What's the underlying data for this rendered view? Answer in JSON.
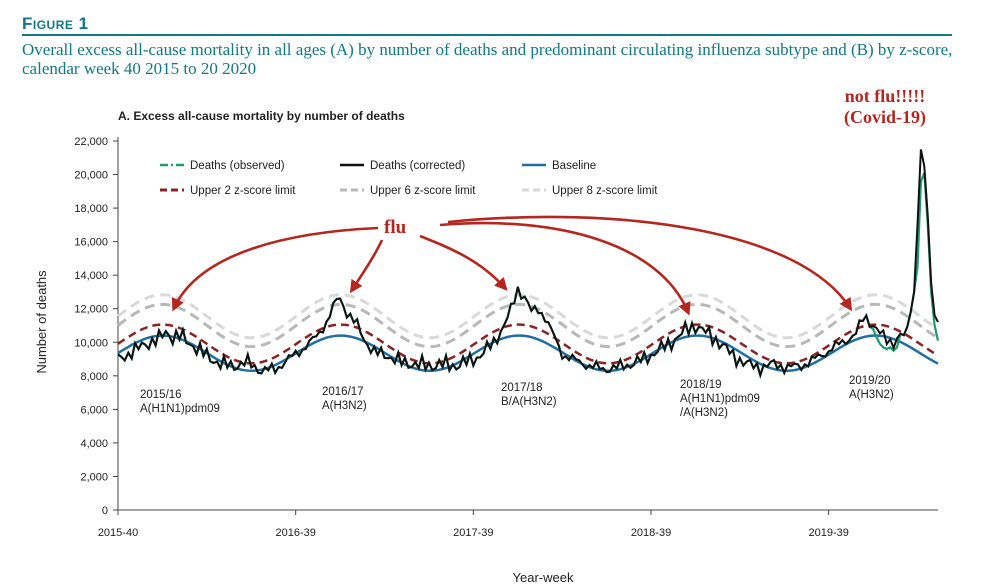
{
  "figure": {
    "label": "Figure 1",
    "caption": "Overall excess all-cause mortality in all ages (A) by number of deaths and predominant circulating influenza subtype and (B) by z-score, calendar week 40 2015 to 20 2020"
  },
  "annotations": {
    "top_line1": "not flu!!!!!",
    "top_line2": "(Covid-19)",
    "flu": "flu",
    "colors": {
      "annotation_red": "#b5261e"
    }
  },
  "seasons": [
    {
      "line1": "2015/16",
      "line2": "A(H1N1)pdm09",
      "line3": ""
    },
    {
      "line1": "2016/17",
      "line2": "A(H3N2)",
      "line3": ""
    },
    {
      "line1": "2017/18",
      "line2": "B/A(H3N2)",
      "line3": ""
    },
    {
      "line1": "2018/19",
      "line2": "A(H1N1)pdm09",
      "line3": "/A(H3N2)"
    },
    {
      "line1": "2019/20",
      "line2": "A(H3N2)",
      "line3": ""
    }
  ],
  "chart_data": {
    "type": "line",
    "title": "A. Excess all-cause mortality by number of deaths",
    "xlabel": "Year-week",
    "ylabel": "Number of deaths",
    "ylim": [
      0,
      22000
    ],
    "yticks": [
      0,
      2000,
      4000,
      6000,
      8000,
      10000,
      12000,
      14000,
      16000,
      18000,
      20000,
      22000
    ],
    "ytick_labels": [
      "0",
      "2,000",
      "4,000",
      "6,000",
      "8,000",
      "10,000",
      "12,000",
      "14,000",
      "16,000",
      "18,000",
      "20,000",
      "22,000"
    ],
    "xticks": [
      "2015-40",
      "2016-39",
      "2017-39",
      "2018-39",
      "2019-39"
    ],
    "grid": false,
    "legend_position": "top-left inside plot",
    "series_colors": {
      "Deaths (observed)": "#1e9a6c",
      "Deaths (corrected)": "#111111",
      "Baseline": "#1f6fa3",
      "Upper 2 z-score limit": "#8b2323",
      "Upper 6 z-score limit": "#b8b8b8",
      "Upper 8 z-score limit": "#d9d9d9"
    },
    "legend": [
      {
        "name": "Deaths (observed)",
        "style": "dash-dot"
      },
      {
        "name": "Deaths (corrected)",
        "style": "solid"
      },
      {
        "name": "Baseline",
        "style": "solid"
      },
      {
        "name": "Upper 2 z-score limit",
        "style": "dashed"
      },
      {
        "name": "Upper 6 z-score limit",
        "style": "dashed"
      },
      {
        "name": "Upper 8 z-score limit",
        "style": "dashed"
      }
    ],
    "baseline_model": {
      "mean": 9350,
      "amplitude": 1050,
      "peak_week_offset": 13,
      "period_weeks": 52.18
    },
    "limit_offsets": {
      "Upper 2 z-score limit": 550,
      "Upper 6 z-score limit": 1650,
      "Upper 8 z-score limit": 2200
    },
    "limit_amplitude_scale": {
      "Upper 2 z-score limit": 1.1,
      "Upper 6 z-score limit": 1.2,
      "Upper 8 z-score limit": 1.22
    },
    "weeks_total": 241,
    "observed_deviation_from_corrected": [
      {
        "week": 221,
        "value": 10800
      },
      {
        "week": 222,
        "value": 10300
      },
      {
        "week": 223,
        "value": 9900
      },
      {
        "week": 224,
        "value": 9700
      },
      {
        "week": 225,
        "value": 9600
      },
      {
        "week": 226,
        "value": 9700
      },
      {
        "week": 227,
        "value": 9500
      },
      {
        "week": 228,
        "value": 9700
      },
      {
        "week": 234,
        "value": 14500
      },
      {
        "week": 235,
        "value": 19600
      },
      {
        "week": 236,
        "value": 20100
      },
      {
        "week": 237,
        "value": 17000
      },
      {
        "week": 238,
        "value": 13000
      },
      {
        "week": 239,
        "value": 11000
      },
      {
        "week": 240,
        "value": 10100
      }
    ],
    "corrected_keypoints": [
      {
        "week": 0,
        "value": 9000
      },
      {
        "week": 4,
        "value": 9400
      },
      {
        "week": 8,
        "value": 9900
      },
      {
        "week": 12,
        "value": 10200
      },
      {
        "week": 14,
        "value": 10600
      },
      {
        "week": 16,
        "value": 10300
      },
      {
        "week": 18,
        "value": 10400
      },
      {
        "week": 22,
        "value": 9800
      },
      {
        "week": 26,
        "value": 9200
      },
      {
        "week": 30,
        "value": 8700
      },
      {
        "week": 34,
        "value": 8600
      },
      {
        "week": 38,
        "value": 8800
      },
      {
        "week": 42,
        "value": 8300
      },
      {
        "week": 46,
        "value": 8400
      },
      {
        "week": 50,
        "value": 9000
      },
      {
        "week": 54,
        "value": 9600
      },
      {
        "week": 58,
        "value": 10300
      },
      {
        "week": 61,
        "value": 11200
      },
      {
        "week": 64,
        "value": 12500
      },
      {
        "week": 65,
        "value": 12600
      },
      {
        "week": 67,
        "value": 11800
      },
      {
        "week": 70,
        "value": 11000
      },
      {
        "week": 72,
        "value": 10200
      },
      {
        "week": 75,
        "value": 9400
      },
      {
        "week": 79,
        "value": 9200
      },
      {
        "week": 83,
        "value": 8800
      },
      {
        "week": 87,
        "value": 8700
      },
      {
        "week": 91,
        "value": 8600
      },
      {
        "week": 95,
        "value": 8700
      },
      {
        "week": 99,
        "value": 8600
      },
      {
        "week": 103,
        "value": 8900
      },
      {
        "week": 106,
        "value": 9200
      },
      {
        "week": 110,
        "value": 10000
      },
      {
        "week": 113,
        "value": 11000
      },
      {
        "week": 115,
        "value": 11900
      },
      {
        "week": 117,
        "value": 13200
      },
      {
        "week": 119,
        "value": 12700
      },
      {
        "week": 121,
        "value": 11800
      },
      {
        "week": 123,
        "value": 12000
      },
      {
        "week": 125,
        "value": 11500
      },
      {
        "week": 127,
        "value": 10600
      },
      {
        "week": 130,
        "value": 9300
      },
      {
        "week": 134,
        "value": 8900
      },
      {
        "week": 138,
        "value": 8600
      },
      {
        "week": 142,
        "value": 8400
      },
      {
        "week": 146,
        "value": 8500
      },
      {
        "week": 150,
        "value": 8700
      },
      {
        "week": 154,
        "value": 9000
      },
      {
        "week": 158,
        "value": 9500
      },
      {
        "week": 162,
        "value": 10000
      },
      {
        "week": 166,
        "value": 10700
      },
      {
        "week": 169,
        "value": 11000
      },
      {
        "week": 172,
        "value": 10600
      },
      {
        "week": 176,
        "value": 10000
      },
      {
        "week": 180,
        "value": 9200
      },
      {
        "week": 184,
        "value": 8700
      },
      {
        "week": 188,
        "value": 8500
      },
      {
        "week": 192,
        "value": 8700
      },
      {
        "week": 196,
        "value": 8500
      },
      {
        "week": 200,
        "value": 8600
      },
      {
        "week": 204,
        "value": 9000
      },
      {
        "week": 208,
        "value": 9500
      },
      {
        "week": 212,
        "value": 10000
      },
      {
        "week": 216,
        "value": 10500
      },
      {
        "week": 218,
        "value": 11400
      },
      {
        "week": 219,
        "value": 11500
      },
      {
        "week": 221,
        "value": 11000
      },
      {
        "week": 223,
        "value": 10500
      },
      {
        "week": 225,
        "value": 10200
      },
      {
        "week": 227,
        "value": 10000
      },
      {
        "week": 229,
        "value": 10300
      },
      {
        "week": 231,
        "value": 10600
      },
      {
        "week": 233,
        "value": 13000
      },
      {
        "week": 234,
        "value": 17000
      },
      {
        "week": 235,
        "value": 21500
      },
      {
        "week": 236,
        "value": 20500
      },
      {
        "week": 237,
        "value": 17500
      },
      {
        "week": 238,
        "value": 13500
      },
      {
        "week": 239,
        "value": 11600
      },
      {
        "week": 240,
        "value": 11200
      }
    ]
  }
}
